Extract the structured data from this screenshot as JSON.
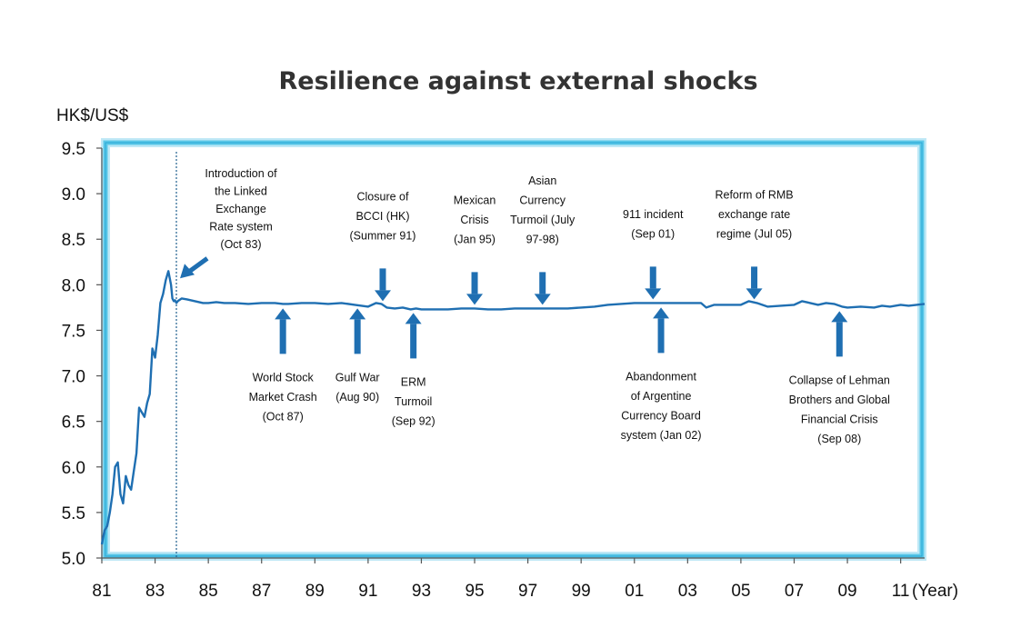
{
  "chart_data": {
    "type": "line",
    "title": "Resilience against external shocks",
    "ylabel": "HK$/US$",
    "xlabel": "(Year)",
    "ylim": [
      5.0,
      9.5
    ],
    "xlim": [
      1981,
      2011.9
    ],
    "y_ticks": [
      "5.0",
      "5.5",
      "6.0",
      "6.5",
      "7.0",
      "7.5",
      "8.0",
      "8.5",
      "9.0",
      "9.5"
    ],
    "x_ticks": [
      {
        "x": 1981,
        "label": "81"
      },
      {
        "x": 1983,
        "label": "83"
      },
      {
        "x": 1985,
        "label": "85"
      },
      {
        "x": 1987,
        "label": "87"
      },
      {
        "x": 1989,
        "label": "89"
      },
      {
        "x": 1991,
        "label": "91"
      },
      {
        "x": 1993,
        "label": "93"
      },
      {
        "x": 1995,
        "label": "95"
      },
      {
        "x": 1997,
        "label": "97"
      },
      {
        "x": 1999,
        "label": "99"
      },
      {
        "x": 2001,
        "label": "01"
      },
      {
        "x": 2003,
        "label": "03"
      },
      {
        "x": 2005,
        "label": "05"
      },
      {
        "x": 2007,
        "label": "07"
      },
      {
        "x": 2009,
        "label": "09"
      },
      {
        "x": 2011,
        "label": "11"
      }
    ],
    "grid": false,
    "line_color": "#1f6fb2",
    "frame_color": "#5bc8e8",
    "series": [
      {
        "x": [
          1981.0,
          1981.1,
          1981.2,
          1981.3,
          1981.4,
          1981.5,
          1981.6,
          1981.7,
          1981.8,
          1981.9,
          1982.0,
          1982.1,
          1982.2,
          1982.3,
          1982.4,
          1982.5,
          1982.6,
          1982.7,
          1982.8,
          1982.9,
          1983.0,
          1983.1,
          1983.2,
          1983.3,
          1983.4,
          1983.5,
          1983.6,
          1983.65,
          1983.7,
          1983.75,
          1983.8,
          1983.85,
          1983.9,
          1984.0,
          1984.2,
          1984.5,
          1984.8,
          1985.0,
          1985.3,
          1985.6,
          1986.0,
          1986.5,
          1987.0,
          1987.5,
          1987.8,
          1988.0,
          1988.5,
          1989.0,
          1989.5,
          1990.0,
          1990.5,
          1991.0,
          1991.3,
          1991.5,
          1991.7,
          1992.0,
          1992.3,
          1992.6,
          1992.8,
          1993.0,
          1993.5,
          1994.0,
          1994.5,
          1995.0,
          1995.5,
          1996.0,
          1996.5,
          1997.0,
          1997.5,
          1998.0,
          1998.5,
          1999.0,
          1999.5,
          2000.0,
          2000.5,
          2001.0,
          2001.5,
          2002.0,
          2002.5,
          2003.0,
          2003.5,
          2003.7,
          2004.0,
          2004.5,
          2005.0,
          2005.3,
          2005.6,
          2006.0,
          2006.5,
          2007.0,
          2007.3,
          2007.6,
          2007.9,
          2008.2,
          2008.5,
          2008.8,
          2009.0,
          2009.5,
          2010.0,
          2010.3,
          2010.6,
          2011.0,
          2011.3,
          2011.6,
          2011.9
        ],
        "y": [
          5.15,
          5.3,
          5.35,
          5.5,
          5.7,
          6.0,
          6.05,
          5.7,
          5.6,
          5.9,
          5.8,
          5.75,
          5.95,
          6.15,
          6.65,
          6.6,
          6.55,
          6.7,
          6.8,
          7.3,
          7.2,
          7.45,
          7.8,
          7.9,
          8.05,
          8.15,
          8.0,
          7.85,
          7.82,
          7.83,
          7.8,
          7.82,
          7.83,
          7.85,
          7.84,
          7.82,
          7.8,
          7.8,
          7.81,
          7.8,
          7.8,
          7.79,
          7.8,
          7.8,
          7.79,
          7.79,
          7.8,
          7.8,
          7.79,
          7.8,
          7.78,
          7.76,
          7.8,
          7.79,
          7.75,
          7.74,
          7.75,
          7.73,
          7.74,
          7.73,
          7.73,
          7.73,
          7.74,
          7.74,
          7.73,
          7.73,
          7.74,
          7.74,
          7.74,
          7.74,
          7.74,
          7.75,
          7.76,
          7.78,
          7.79,
          7.8,
          7.8,
          7.8,
          7.8,
          7.8,
          7.8,
          7.75,
          7.78,
          7.78,
          7.78,
          7.82,
          7.8,
          7.76,
          7.77,
          7.78,
          7.82,
          7.8,
          7.78,
          7.8,
          7.79,
          7.76,
          7.75,
          7.76,
          7.75,
          7.77,
          7.76,
          7.78,
          7.77,
          7.78,
          7.79
        ]
      }
    ],
    "reference_line": {
      "x": 1983.8,
      "style": "dotted"
    },
    "annotations": [
      {
        "name": "linked-rate",
        "lines": [
          "Introduction of",
          "the Linked",
          "Exchange",
          "Rate system",
          "(Oct 83)"
        ],
        "date": 1983.8,
        "value": 8.15,
        "position": "above",
        "arrow": "diagonal"
      },
      {
        "name": "bcci",
        "lines": [
          "Closure of",
          "BCCI (HK)",
          "(Summer 91)"
        ],
        "date": 1991.55,
        "value": 7.78,
        "position": "above",
        "arrow": "down"
      },
      {
        "name": "mexican",
        "lines": [
          "Mexican",
          "Crisis",
          "(Jan 95)"
        ],
        "date": 1995.0,
        "value": 7.74,
        "position": "above",
        "arrow": "down"
      },
      {
        "name": "asian",
        "lines": [
          "Asian",
          "Currency",
          "Turmoil (July",
          "97-98)"
        ],
        "date": 1997.55,
        "value": 7.74,
        "position": "above",
        "arrow": "down"
      },
      {
        "name": "sep11",
        "lines": [
          "911 incident",
          "(Sep 01)"
        ],
        "date": 2001.7,
        "value": 7.8,
        "position": "above",
        "arrow": "down"
      },
      {
        "name": "rmb",
        "lines": [
          "Reform of RMB",
          "exchange rate",
          "regime (Jul 05)"
        ],
        "date": 2005.5,
        "value": 7.8,
        "position": "above",
        "arrow": "down"
      },
      {
        "name": "crash87",
        "lines": [
          "World Stock",
          "Market Crash",
          "(Oct 87)"
        ],
        "date": 1987.8,
        "value": 7.79,
        "position": "below",
        "arrow": "up"
      },
      {
        "name": "gulfwar",
        "lines": [
          "Gulf War",
          "(Aug 90)"
        ],
        "date": 1990.6,
        "value": 7.79,
        "position": "below",
        "arrow": "up"
      },
      {
        "name": "erm",
        "lines": [
          "ERM",
          "Turmoil",
          "(Sep 92)"
        ],
        "date": 1992.7,
        "value": 7.74,
        "position": "below",
        "arrow": "up"
      },
      {
        "name": "argentine",
        "lines": [
          "Abandonment",
          "of Argentine",
          "Currency Board",
          "system (Jan 02)"
        ],
        "date": 2002.0,
        "value": 7.8,
        "position": "below",
        "arrow": "up"
      },
      {
        "name": "lehman",
        "lines": [
          "Collapse of Lehman",
          "Brothers and Global",
          "Financial Crisis",
          "(Sep 08)"
        ],
        "date": 2008.7,
        "value": 7.76,
        "position": "below",
        "arrow": "up"
      }
    ]
  }
}
